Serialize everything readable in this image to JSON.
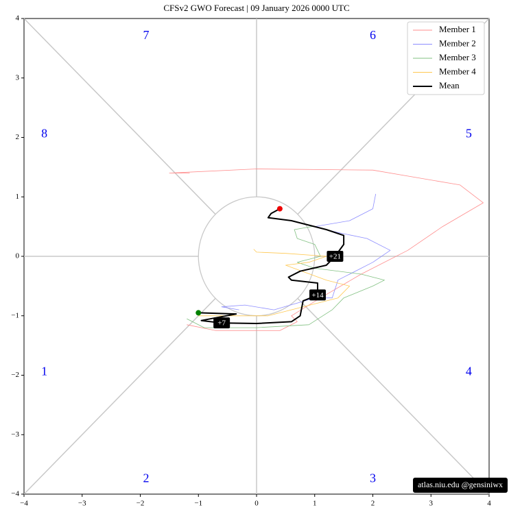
{
  "chart_data": {
    "type": "line",
    "title": "CFSv2 GWO Forecast  |  09  January  2026 0000 UTC",
    "xlim": [
      -4,
      4
    ],
    "ylim": [
      -4,
      4
    ],
    "xticks": [
      {
        "value": -4,
        "label": "−4"
      },
      {
        "value": -3,
        "label": "−3"
      },
      {
        "value": -2,
        "label": "−2"
      },
      {
        "value": -1,
        "label": "−1"
      },
      0,
      1,
      2,
      3,
      4
    ],
    "yticks": [
      {
        "value": -4,
        "label": "−4"
      },
      {
        "value": -3,
        "label": "−3"
      },
      {
        "value": -2,
        "label": "−2"
      },
      {
        "value": -1,
        "label": "−1"
      },
      0,
      1,
      2,
      3,
      4
    ],
    "phase_labels": [
      "1",
      "2",
      "3",
      "4",
      "5",
      "6",
      "7",
      "8"
    ],
    "day_labels": [
      "+7",
      "+14",
      "+21"
    ],
    "credit": "atlas.niu.edu  @gensiniwx",
    "legend": "upper right",
    "series": [
      {
        "name": "Member 1",
        "color": "#ff8c8c",
        "width": 0.8,
        "x": [
          -1.2,
          -0.7,
          0.4,
          0.7,
          0.6,
          1.1,
          1.8,
          2.6,
          3.2,
          3.9,
          3.5,
          2.0,
          0.0,
          -1.5,
          -1.15
        ],
        "y": [
          -1.15,
          -1.25,
          -1.25,
          -1.1,
          -1.0,
          -0.7,
          -0.3,
          0.1,
          0.5,
          0.9,
          1.2,
          1.45,
          1.47,
          1.4,
          1.4
        ]
      },
      {
        "name": "Member 2",
        "color": "#8c8cff",
        "width": 0.8,
        "x": [
          -0.3,
          -0.6,
          -0.2,
          0.3,
          1.0,
          1.3,
          1.4,
          2.0,
          2.3,
          1.9,
          1.4,
          1.0,
          1.6,
          2.0,
          2.05
        ],
        "y": [
          -0.9,
          -0.85,
          -0.82,
          -0.9,
          -0.7,
          -0.7,
          -0.4,
          -0.1,
          0.1,
          0.3,
          0.4,
          0.5,
          0.6,
          0.8,
          1.05
        ]
      },
      {
        "name": "Member 3",
        "color": "#80c080",
        "width": 0.8,
        "x": [
          -1.2,
          -0.9,
          0.0,
          0.9,
          1.3,
          1.5,
          2.0,
          2.2,
          1.8,
          1.0,
          0.7,
          1.1,
          1.0,
          0.7,
          0.65,
          0.95
        ],
        "y": [
          -1.05,
          -1.2,
          -1.2,
          -1.15,
          -0.9,
          -0.7,
          -0.5,
          -0.4,
          -0.3,
          -0.2,
          -0.1,
          0.0,
          0.2,
          0.3,
          0.45,
          0.5
        ]
      },
      {
        "name": "Member 4",
        "color": "#ffc850",
        "width": 0.8,
        "x": [
          -1.0,
          -0.5,
          0.2,
          1.0,
          1.4,
          1.6,
          1.2,
          0.5,
          0.9,
          1.2,
          0.5,
          0.0,
          -0.05
        ],
        "y": [
          -1.0,
          -1.0,
          -1.0,
          -0.8,
          -0.7,
          -0.5,
          -0.4,
          -0.15,
          -0.1,
          0.0,
          0.05,
          0.07,
          0.12
        ]
      },
      {
        "name": "Mean",
        "color": "#000000",
        "width": 2,
        "x": [
          -1.0,
          -0.35,
          -0.95,
          -0.6,
          0.0,
          0.6,
          0.75,
          0.8,
          1.05,
          1.05,
          0.6,
          0.55,
          0.75,
          1.2,
          1.35,
          1.5,
          1.5,
          1.2,
          0.6,
          0.2,
          0.25,
          0.4
        ],
        "y": [
          -0.95,
          -0.97,
          -1.08,
          -1.12,
          -1.13,
          -1.1,
          -1.0,
          -0.75,
          -0.65,
          -0.45,
          -0.4,
          -0.35,
          -0.25,
          -0.15,
          0.0,
          0.2,
          0.35,
          0.45,
          0.6,
          0.65,
          0.72,
          0.8
        ]
      }
    ]
  }
}
